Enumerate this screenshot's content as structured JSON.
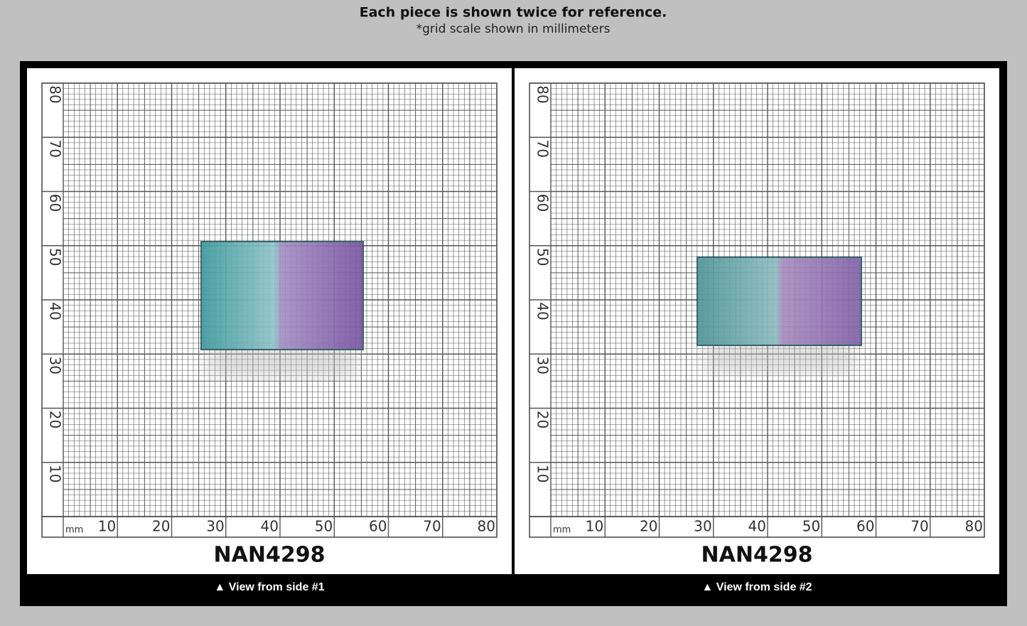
{
  "header": {
    "title": "Each piece is shown twice for reference.",
    "subtitle": "*grid scale shown in millimeters"
  },
  "grid": {
    "unit": "mm",
    "x_labels": [
      10,
      20,
      30,
      40,
      50,
      60,
      70,
      80
    ],
    "y_labels": [
      10,
      20,
      30,
      40,
      50,
      60,
      70,
      80
    ]
  },
  "panels": [
    {
      "id": "NAN4298",
      "caption": "▲ View from side #1"
    },
    {
      "id": "NAN4298",
      "caption": "▲ View from side #2"
    }
  ]
}
